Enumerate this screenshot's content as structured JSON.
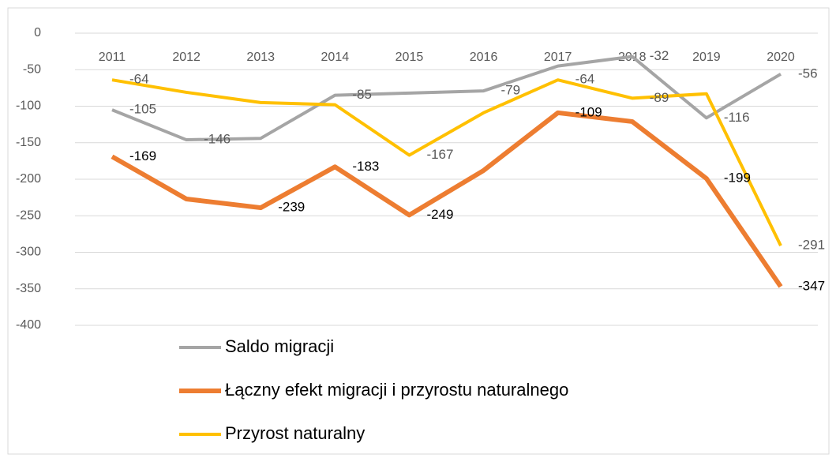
{
  "chart_data": {
    "type": "line",
    "categories": [
      "2011",
      "2012",
      "2013",
      "2014",
      "2015",
      "2016",
      "2017",
      "2018",
      "2019",
      "2020"
    ],
    "series": [
      {
        "name": "Saldo migracji",
        "color": "#a5a5a5",
        "values": [
          -105,
          -146,
          -144,
          -85,
          -82,
          -79,
          -45,
          -32,
          -116,
          -56
        ],
        "value_labels": [
          "-105",
          "-146",
          null,
          "-85",
          null,
          "-79",
          null,
          "-32",
          "-116",
          "-56"
        ]
      },
      {
        "name": "Łączny efekt migracji i przyrostu naturalnego",
        "color": "#ed7d31",
        "values": [
          -169,
          -227,
          -239,
          -183,
          -249,
          -188,
          -109,
          -121,
          -199,
          -347
        ],
        "value_labels": [
          "-169",
          null,
          "-239",
          "-183",
          "-249",
          null,
          "-109",
          null,
          "-199",
          "-347"
        ]
      },
      {
        "name": "Przyrost naturalny",
        "color": "#ffc000",
        "values": [
          -64,
          -81,
          -95,
          -98,
          -167,
          -109,
          -64,
          -89,
          -83,
          -291
        ],
        "value_labels": [
          "-64",
          null,
          null,
          null,
          "-167",
          null,
          "-64",
          "-89",
          null,
          "-291"
        ]
      }
    ],
    "ylim": [
      -400,
      0
    ],
    "yticks": [
      0,
      -50,
      -100,
      -150,
      -200,
      -250,
      -300,
      -350,
      -400
    ],
    "grid": true
  }
}
